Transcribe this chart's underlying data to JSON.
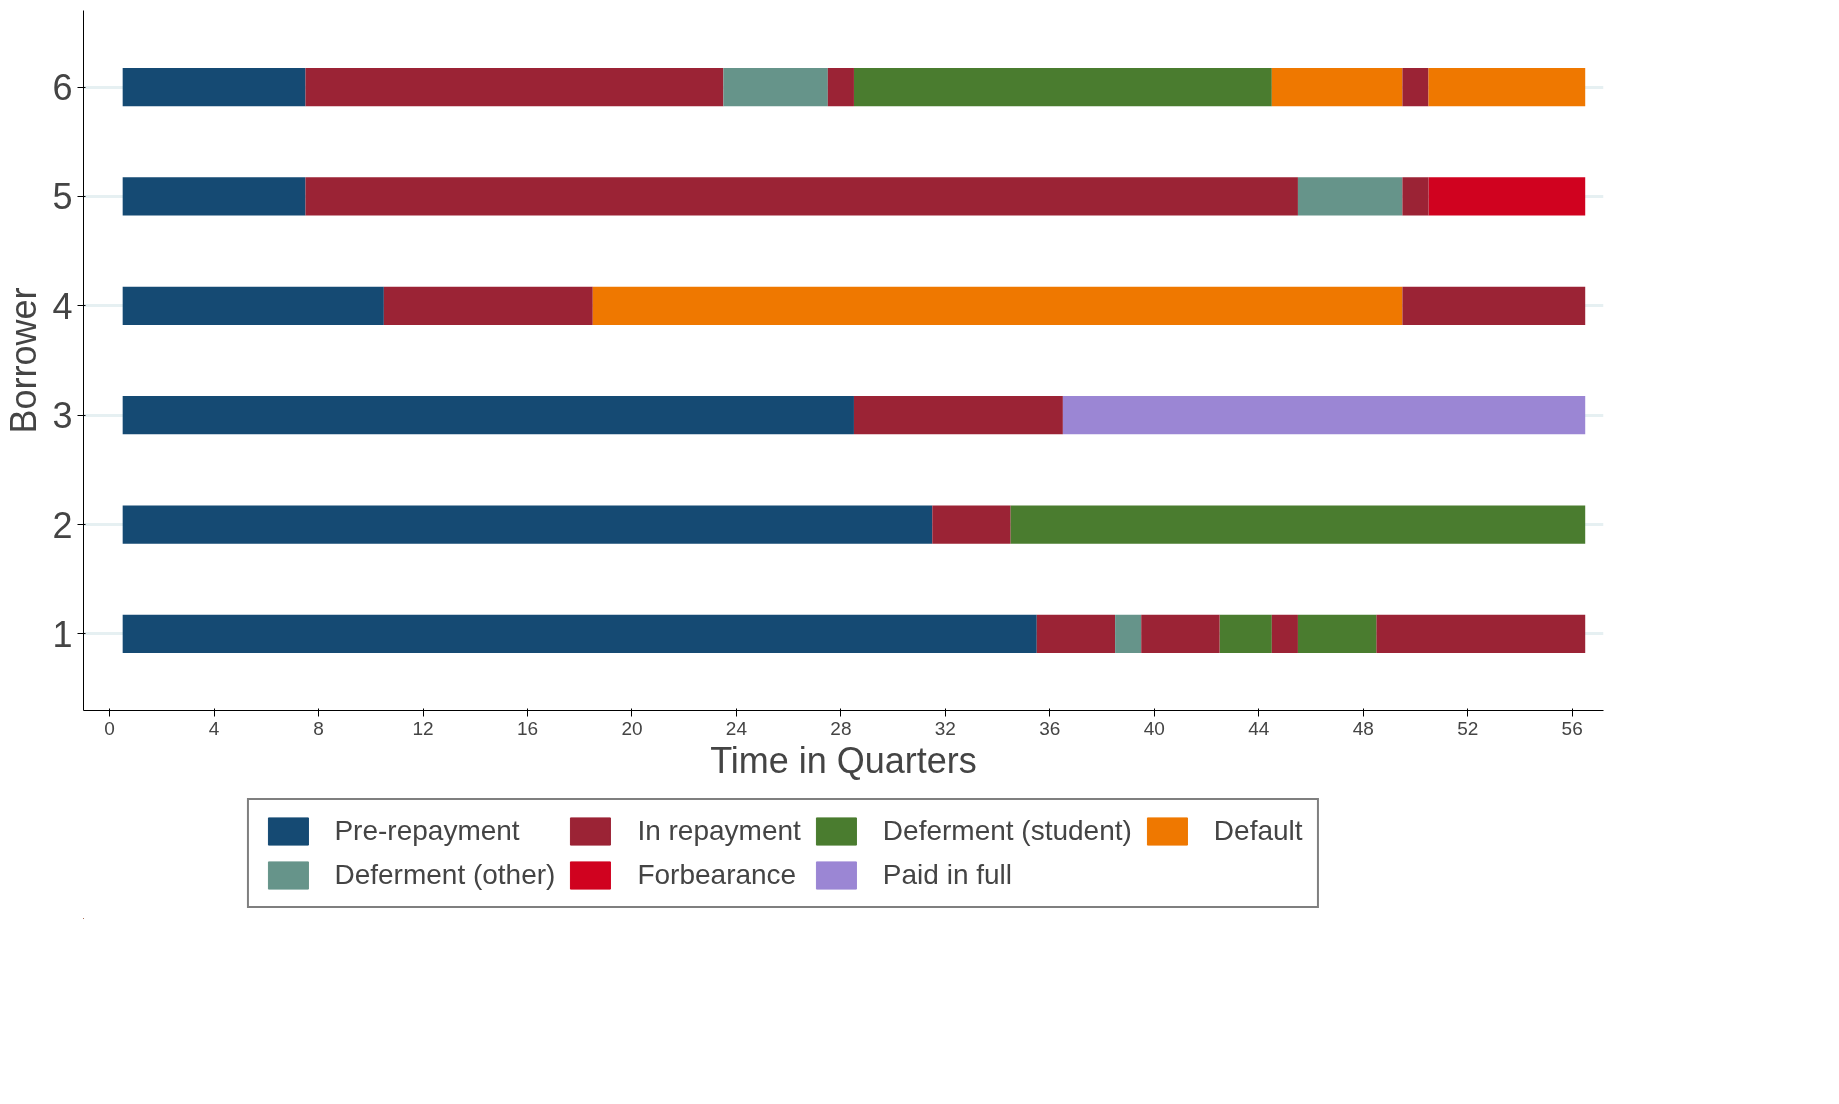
{
  "chart_data": {
    "type": "bar",
    "orientation": "horizontal",
    "xlabel": "Time in Quarters",
    "ylabel": "Borrower",
    "categories": [
      "6",
      "5",
      "4",
      "3",
      "2",
      "1"
    ],
    "xlim": [
      -1,
      57.2
    ],
    "xticks": [
      0,
      4,
      8,
      12,
      16,
      20,
      24,
      28,
      32,
      36,
      40,
      44,
      48,
      52,
      56
    ],
    "grid": "y",
    "legend": "bottom",
    "series": [
      {
        "name": "Pre-repayment",
        "color": "#154a73",
        "values": [
          7,
          7,
          10,
          28,
          31,
          35
        ],
        "base": [
          0.5,
          0.5,
          0.5,
          0.5,
          0.5,
          0.5
        ]
      },
      {
        "name": "In repayment",
        "color": "#9b2335",
        "values": [
          16,
          38,
          8,
          8,
          3,
          3
        ],
        "base": [
          7.5,
          7.5,
          10.5,
          28.5,
          31.5,
          35.5
        ]
      },
      {
        "name": "Deferment (student)",
        "color": "#4a7c2f",
        "values": [
          16,
          null,
          null,
          null,
          22,
          2
        ],
        "base": [
          28.5,
          null,
          null,
          null,
          34.5,
          42.5
        ]
      },
      {
        "name": "Default",
        "color": "#ef7800",
        "values": [
          5,
          null,
          31,
          null,
          null,
          null
        ],
        "base": [
          44.5,
          null,
          18.5,
          null,
          null,
          null
        ]
      },
      {
        "name": "Deferment (other)",
        "color": "#66948a",
        "values": [
          4,
          4,
          null,
          null,
          null,
          1
        ],
        "base": [
          23.5,
          45.5,
          null,
          null,
          null,
          38.5
        ]
      },
      {
        "name": "Forbearance",
        "color": "#d0021f",
        "values": [
          null,
          6,
          null,
          null,
          null,
          null
        ],
        "base": [
          null,
          50.5,
          null,
          null,
          null,
          null
        ]
      },
      {
        "name": "Paid in full",
        "color": "#9b86d4",
        "values": [
          null,
          null,
          null,
          20,
          null,
          null
        ],
        "base": [
          null,
          null,
          null,
          36.5,
          null,
          null
        ]
      },
      {
        "color": "#9b2335",
        "values": [
          1,
          1,
          7,
          null,
          null,
          3
        ],
        "base": [
          27.5,
          49.5,
          49.5,
          null,
          null,
          39.5
        ]
      },
      {
        "color": "#9b2335",
        "values": [
          1,
          null,
          null,
          null,
          null,
          1
        ],
        "base": [
          49.5,
          null,
          null,
          null,
          null,
          44.5
        ]
      },
      {
        "color": "#9b2335",
        "values": [
          null,
          null,
          null,
          null,
          null,
          8
        ],
        "base": [
          null,
          null,
          null,
          null,
          null,
          48.5
        ]
      },
      {
        "color": "#4a7c2f",
        "values": [
          null,
          null,
          null,
          null,
          null,
          3
        ],
        "base": [
          null,
          null,
          null,
          null,
          null,
          45.5
        ]
      },
      {
        "color": "#ef7800",
        "values": [
          6,
          null,
          null,
          null,
          null,
          null
        ],
        "base": [
          50.5,
          null,
          null,
          null,
          null,
          null
        ]
      }
    ]
  }
}
